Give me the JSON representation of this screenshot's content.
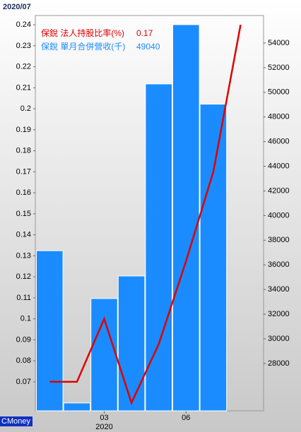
{
  "chart_data": {
    "type": "bar-line",
    "title": "2020/07",
    "categories": [
      null,
      null,
      "03",
      null,
      null,
      "06",
      null,
      null
    ],
    "x_sublabel": "2020",
    "watermark": "CMoney",
    "series": [
      {
        "name": "保銳 單月合併營收(千)",
        "color": "#1a8cff",
        "type": "bar",
        "axis": "y2",
        "values": [
          37150,
          24800,
          33270,
          35100,
          50680,
          55490,
          49040,
          null
        ]
      },
      {
        "name": "保銳 法人持股比率(%)",
        "color": "#e00000",
        "type": "line",
        "axis": "y",
        "values": [
          0.07,
          0.07,
          0.1,
          0.06,
          0.088,
          0.1275,
          0.17,
          0.24
        ]
      }
    ],
    "ylim": [
      0.0562,
      0.2444
    ],
    "yticks": [
      0.07,
      0.08,
      0.09,
      0.1,
      0.11,
      0.12,
      0.13,
      0.14,
      0.15,
      0.16,
      0.17,
      0.18,
      0.19,
      0.2,
      0.21,
      0.22,
      0.23,
      0.24
    ],
    "y2lim": [
      24160,
      56230
    ],
    "y2ticks": [
      28000,
      30000,
      32000,
      34000,
      36000,
      38000,
      40000,
      42000,
      44000,
      46000,
      48000,
      50000,
      52000,
      54000
    ]
  }
}
